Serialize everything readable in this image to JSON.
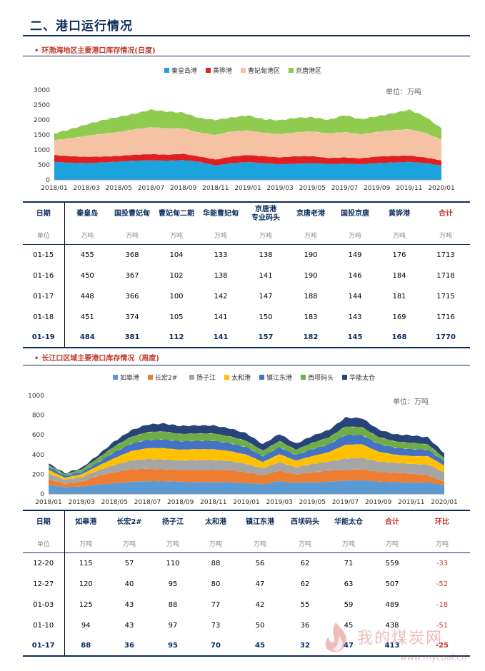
{
  "header": {
    "title": "二、港口运行情况"
  },
  "section1": {
    "title": "环渤海地区主要港口库存情况(日度)",
    "unit_label": "单位：万吨",
    "legend": [
      {
        "name": "秦皇岛港",
        "color": "#1aa3dc"
      },
      {
        "name": "黄骅港",
        "color": "#e02020"
      },
      {
        "name": "曹妃甸港区",
        "color": "#f5c3a4"
      },
      {
        "name": "京唐港区",
        "color": "#8fcb4f"
      }
    ],
    "table": {
      "headers": [
        "日期",
        "秦皇岛",
        "国投曹妃甸",
        "曹妃甸二期",
        "华能曹妃甸",
        "京唐港\n专业码头",
        "京唐老港",
        "国投京唐",
        "黄骅港",
        "合计"
      ],
      "units": [
        "单位",
        "万吨",
        "万吨",
        "万吨",
        "万吨",
        "万吨",
        "万吨",
        "万吨",
        "万吨",
        "万吨"
      ],
      "rows": [
        [
          "01-15",
          "455",
          "368",
          "104",
          "133",
          "138",
          "190",
          "149",
          "176",
          "1713"
        ],
        [
          "01-16",
          "450",
          "367",
          "102",
          "138",
          "141",
          "190",
          "146",
          "184",
          "1718"
        ],
        [
          "01-17",
          "448",
          "366",
          "100",
          "142",
          "147",
          "188",
          "144",
          "181",
          "1715"
        ],
        [
          "01-18",
          "451",
          "374",
          "105",
          "141",
          "150",
          "183",
          "143",
          "169",
          "1716"
        ],
        [
          "01-19",
          "484",
          "381",
          "112",
          "141",
          "157",
          "182",
          "145",
          "168",
          "1770"
        ]
      ]
    }
  },
  "section2": {
    "title": "长江口区域主要港口库存情况（周度)",
    "unit_label": "单位：万吨",
    "legend": [
      {
        "name": "如皋港",
        "color": "#5b9bd5"
      },
      {
        "name": "长宏2#",
        "color": "#ed7d31"
      },
      {
        "name": "扬子江",
        "color": "#a5a5a5"
      },
      {
        "name": "太和港",
        "color": "#ffc000"
      },
      {
        "name": "镇江东港",
        "color": "#4472c4"
      },
      {
        "name": "西坝码头",
        "color": "#70ad47"
      },
      {
        "name": "华能太仓",
        "color": "#264478"
      }
    ],
    "table": {
      "headers": [
        "日期",
        "如皋港",
        "长宏2#",
        "扬子江",
        "太和港",
        "镇江东港",
        "西坝码头",
        "华能太仓",
        "合计",
        "环比"
      ],
      "units": [
        "单位",
        "万吨",
        "万吨",
        "万吨",
        "万吨",
        "万吨",
        "万吨",
        "万吨",
        "万吨",
        "万吨"
      ],
      "rows": [
        [
          "12-20",
          "115",
          "57",
          "110",
          "88",
          "56",
          "62",
          "71",
          "559",
          "-33"
        ],
        [
          "12-27",
          "120",
          "40",
          "95",
          "80",
          "47",
          "62",
          "63",
          "507",
          "-52"
        ],
        [
          "01-03",
          "125",
          "43",
          "88",
          "77",
          "42",
          "55",
          "59",
          "489",
          "-18"
        ],
        [
          "01-10",
          "94",
          "43",
          "97",
          "73",
          "50",
          "36",
          "45",
          "438",
          "-51"
        ],
        [
          "01-17",
          "88",
          "36",
          "95",
          "70",
          "45",
          "32",
          "47",
          "413",
          "-25"
        ]
      ]
    }
  },
  "watermark": {
    "text": "我的煤炭网",
    "url": "www.mycoal.cn"
  },
  "chart_data": [
    {
      "type": "area",
      "stacked": true,
      "unit": "单位：万吨",
      "ylim": [
        0,
        3000
      ],
      "yticks": [
        "0",
        "500",
        "1000",
        "1500",
        "2000",
        "2500",
        "3000"
      ],
      "xticks": [
        "2018/01",
        "2018/03",
        "2018/05",
        "2018/07",
        "2018/09",
        "2018/11",
        "2019/01",
        "2019/03",
        "2019/05",
        "2019/07",
        "2019/09",
        "2019/11",
        "2020/01"
      ],
      "x": [
        "2018/01",
        "2018/02",
        "2018/03",
        "2018/04",
        "2018/05",
        "2018/06",
        "2018/07",
        "2018/08",
        "2018/09",
        "2018/10",
        "2018/11",
        "2018/12",
        "2019/01",
        "2019/02",
        "2019/03",
        "2019/04",
        "2019/05",
        "2019/06",
        "2019/07",
        "2019/08",
        "2019/09",
        "2019/10",
        "2019/11",
        "2019/12",
        "2020/01"
      ],
      "series": [
        {
          "name": "秦皇岛港",
          "color": "#1aa3dc",
          "values": [
            600,
            570,
            560,
            580,
            610,
            640,
            650,
            640,
            660,
            600,
            480,
            560,
            590,
            560,
            520,
            540,
            560,
            530,
            540,
            520,
            560,
            580,
            600,
            560,
            480
          ]
        },
        {
          "name": "黄骅港",
          "color": "#e02020",
          "values": [
            230,
            220,
            210,
            200,
            190,
            200,
            210,
            200,
            210,
            180,
            200,
            220,
            240,
            230,
            230,
            250,
            230,
            200,
            210,
            200,
            220,
            220,
            210,
            190,
            170
          ]
        },
        {
          "name": "曹妃甸港区",
          "color": "#f5c3a4",
          "values": [
            500,
            600,
            700,
            760,
            800,
            850,
            900,
            880,
            850,
            800,
            820,
            840,
            820,
            780,
            780,
            800,
            830,
            820,
            850,
            800,
            820,
            860,
            880,
            820,
            700
          ]
        },
        {
          "name": "京唐港区",
          "color": "#8fcb4f",
          "values": [
            220,
            300,
            380,
            450,
            500,
            520,
            580,
            560,
            520,
            480,
            500,
            460,
            500,
            450,
            460,
            480,
            470,
            450,
            560,
            500,
            520,
            560,
            650,
            540,
            370
          ]
        }
      ]
    },
    {
      "type": "area",
      "stacked": true,
      "unit": "单位：万吨",
      "ylim": [
        0,
        1000
      ],
      "yticks": [
        "0",
        "200",
        "400",
        "600",
        "800",
        "1000"
      ],
      "xticks": [
        "2018/01",
        "2018/03",
        "2018/05",
        "2018/07",
        "2018/09",
        "2018/11",
        "2019/01",
        "2019/03",
        "2019/05",
        "2019/07",
        "2019/09",
        "2019/11",
        "2020/01"
      ],
      "x": [
        "2018/01",
        "2018/02",
        "2018/03",
        "2018/04",
        "2018/05",
        "2018/06",
        "2018/07",
        "2018/08",
        "2018/09",
        "2018/10",
        "2018/11",
        "2018/12",
        "2019/01",
        "2019/02",
        "2019/03",
        "2019/04",
        "2019/05",
        "2019/06",
        "2019/07",
        "2019/08",
        "2019/09",
        "2019/10",
        "2019/11",
        "2019/12",
        "2020/01"
      ],
      "series": [
        {
          "name": "如皋港",
          "color": "#5b9bd5",
          "values": [
            90,
            70,
            75,
            95,
            110,
            125,
            130,
            130,
            125,
            120,
            120,
            120,
            110,
            100,
            130,
            115,
            120,
            125,
            135,
            140,
            125,
            120,
            115,
            120,
            88
          ]
        },
        {
          "name": "长宏2#",
          "color": "#ed7d31",
          "values": [
            60,
            35,
            50,
            90,
            110,
            125,
            125,
            120,
            120,
            125,
            125,
            120,
            110,
            90,
            105,
            85,
            100,
            110,
            110,
            110,
            100,
            95,
            90,
            70,
            36
          ]
        },
        {
          "name": "扬子江",
          "color": "#a5a5a5",
          "values": [
            55,
            40,
            45,
            55,
            75,
            90,
            100,
            100,
            95,
            100,
            100,
            95,
            85,
            70,
            90,
            70,
            85,
            95,
            115,
            115,
            105,
            100,
            100,
            110,
            95
          ]
        },
        {
          "name": "太和港",
          "color": "#ffc000",
          "values": [
            40,
            20,
            30,
            45,
            70,
            95,
            110,
            115,
            110,
            110,
            110,
            100,
            95,
            65,
            80,
            70,
            80,
            95,
            140,
            140,
            100,
            85,
            80,
            85,
            70
          ]
        },
        {
          "name": "镇江东港",
          "color": "#4472c4",
          "values": [
            30,
            20,
            25,
            35,
            60,
            75,
            85,
            90,
            85,
            85,
            85,
            80,
            75,
            60,
            70,
            55,
            70,
            80,
            100,
            95,
            80,
            70,
            70,
            65,
            45
          ]
        },
        {
          "name": "西坝码头",
          "color": "#70ad47",
          "values": [
            20,
            15,
            25,
            45,
            60,
            70,
            80,
            80,
            75,
            75,
            75,
            70,
            65,
            55,
            65,
            55,
            65,
            70,
            85,
            80,
            70,
            65,
            65,
            55,
            32
          ]
        },
        {
          "name": "华能太仓",
          "color": "#264478",
          "values": [
            15,
            10,
            15,
            30,
            50,
            65,
            75,
            80,
            80,
            80,
            80,
            80,
            75,
            65,
            70,
            60,
            70,
            75,
            90,
            90,
            75,
            70,
            75,
            70,
            47
          ]
        }
      ]
    }
  ]
}
